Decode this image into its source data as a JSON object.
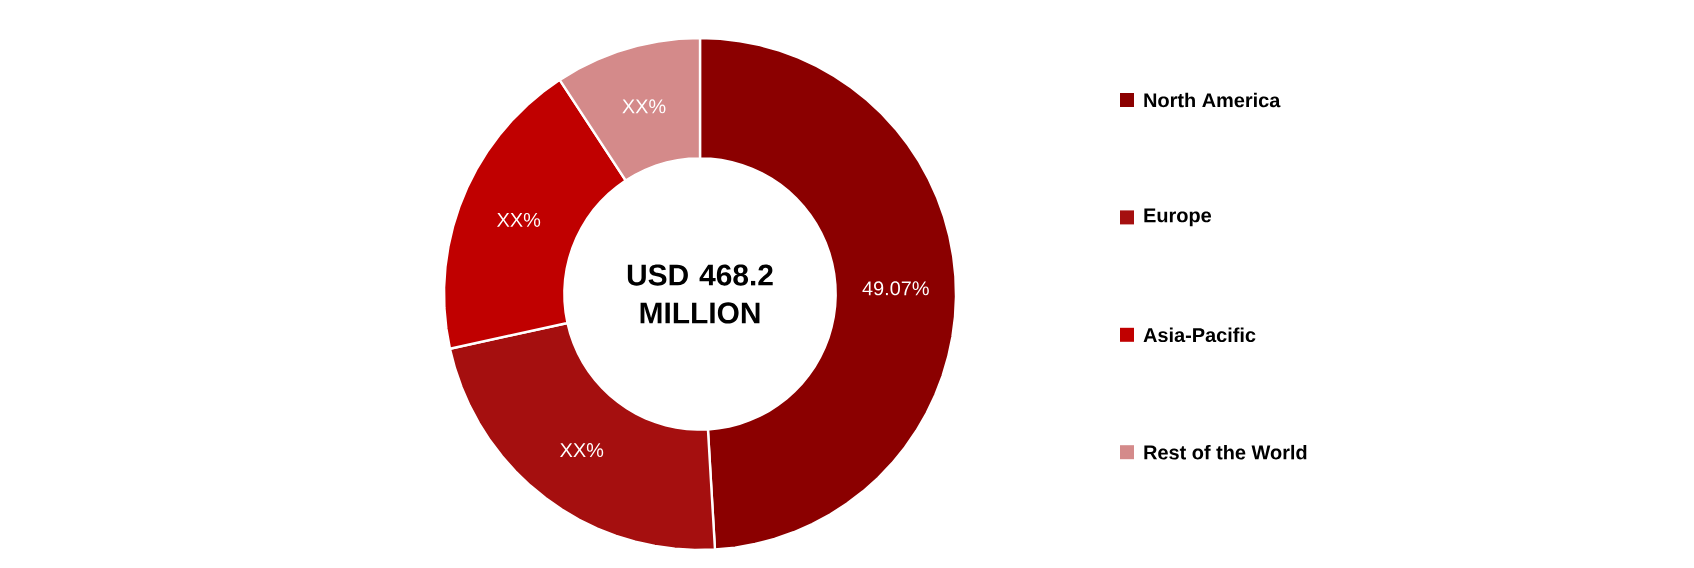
{
  "chart_data": {
    "type": "donut",
    "categories": [
      "North America",
      "Europe",
      "Asia-Pacific",
      "Rest of the World"
    ],
    "values": [
      49.07,
      22.5,
      19.2,
      9.23
    ],
    "colors": [
      "#8b0000",
      "#a50f0f",
      "#c00000",
      "#d48a8a"
    ],
    "value_labels": [
      "49.07%",
      "XX%",
      "XX%",
      "XX%"
    ],
    "annotations": [
      "USD 468.2 MILLION"
    ],
    "legend": "right"
  }
}
